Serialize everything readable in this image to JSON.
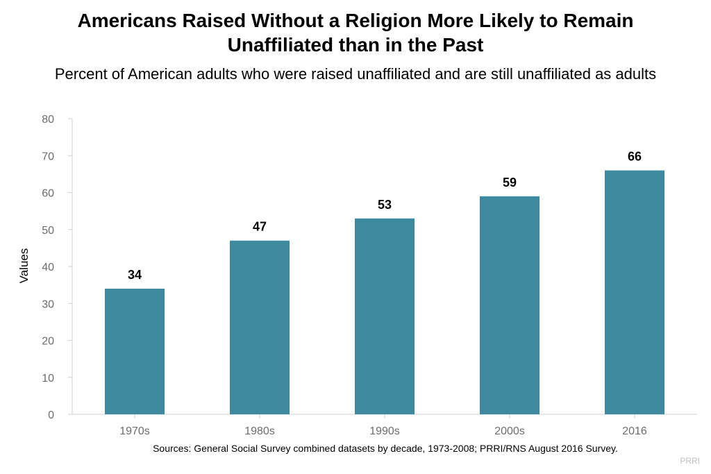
{
  "chart_data": {
    "type": "bar",
    "title": "Americans Raised Without a Religion More Likely to Remain Unaffiliated than in the Past",
    "subtitle": "Percent of American adults who were raised unaffiliated and are still unaffiliated as adults",
    "categories": [
      "1970s",
      "1980s",
      "1990s",
      "2000s",
      "2016"
    ],
    "values": [
      34,
      47,
      53,
      59,
      66
    ],
    "ylabel": "Values",
    "xlabel": "",
    "ylim": [
      0,
      80
    ],
    "yticks": [
      0,
      10,
      20,
      30,
      40,
      50,
      60,
      70,
      80
    ],
    "grid": false,
    "legend": "none",
    "bar_color": "#3d8a9e",
    "source": "Sources: General Social Survey combined datasets by decade, 1973-2008; PRRI/RNS August 2016 Survey.",
    "brand": "PRRI"
  }
}
